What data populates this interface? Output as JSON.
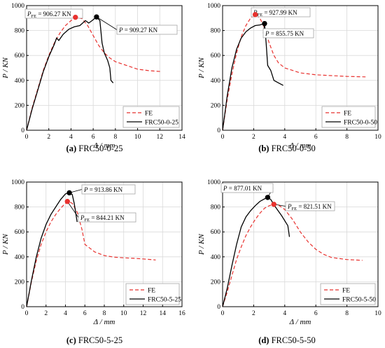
{
  "chart_data": [
    {
      "type": "line",
      "caption_label": "(a)",
      "caption_text": "FRC50-0-25",
      "xlabel": "Δ / mm",
      "ylabel": "P / KN",
      "xlim": [
        0,
        14
      ],
      "ylim": [
        0,
        1000
      ],
      "xticks": [
        0,
        2,
        4,
        6,
        8,
        10,
        12,
        14
      ],
      "yticks": [
        0,
        200,
        400,
        600,
        800,
        1000
      ],
      "grid": true,
      "legend_position": "bottom-right",
      "series": [
        {
          "name": "FE",
          "style": "dashed",
          "color": "#e8322f",
          "points": [
            [
              0,
              0
            ],
            [
              0.5,
              180
            ],
            [
              1,
              330
            ],
            [
              1.5,
              480
            ],
            [
              2,
              600
            ],
            [
              2.5,
              700
            ],
            [
              3,
              780
            ],
            [
              3.5,
              840
            ],
            [
              4,
              880
            ],
            [
              4.5,
              906
            ],
            [
              5,
              895
            ],
            [
              5.5,
              840
            ],
            [
              6,
              760
            ],
            [
              6.5,
              680
            ],
            [
              7,
              620
            ],
            [
              7.5,
              580
            ],
            [
              8,
              550
            ],
            [
              9,
              520
            ],
            [
              10,
              490
            ],
            [
              11,
              478
            ],
            [
              12.2,
              470
            ]
          ]
        },
        {
          "name": "FRC50-0-25",
          "style": "solid",
          "color": "#000000",
          "points": [
            [
              0,
              0
            ],
            [
              0.5,
              170
            ],
            [
              1,
              320
            ],
            [
              1.5,
              470
            ],
            [
              2,
              590
            ],
            [
              2.5,
              690
            ],
            [
              2.7,
              740
            ],
            [
              2.9,
              720
            ],
            [
              3.3,
              770
            ],
            [
              3.8,
              810
            ],
            [
              4.3,
              830
            ],
            [
              4.8,
              840
            ],
            [
              5.3,
              880
            ],
            [
              5.6,
              860
            ],
            [
              5.9,
              880
            ],
            [
              6.3,
              909
            ],
            [
              6.6,
              880
            ],
            [
              6.8,
              700
            ],
            [
              7.0,
              620
            ],
            [
              7.3,
              560
            ],
            [
              7.5,
              500
            ],
            [
              7.6,
              400
            ],
            [
              7.8,
              380
            ]
          ]
        }
      ],
      "markers": [
        {
          "x": 4.4,
          "y": 906.27,
          "color": "#e8322f",
          "label_main": "P",
          "label_sub": "FE",
          "label_rest": " = 906.27 KN"
        },
        {
          "x": 6.3,
          "y": 909.27,
          "color": "#000000",
          "label_main": "P",
          "label_sub": "",
          "label_rest": " = 909.27 KN"
        }
      ]
    },
    {
      "type": "line",
      "caption_label": "(b)",
      "caption_text": "FRC50-0-50",
      "xlabel": "Δ / mm",
      "ylabel": "P / KN",
      "xlim": [
        0,
        10
      ],
      "ylim": [
        0,
        1000
      ],
      "xticks": [
        0,
        2,
        4,
        6,
        8,
        10
      ],
      "yticks": [
        0,
        200,
        400,
        600,
        800,
        1000
      ],
      "grid": true,
      "legend_position": "bottom-right",
      "series": [
        {
          "name": "FE",
          "style": "dashed",
          "color": "#e8322f",
          "points": [
            [
              0,
              0
            ],
            [
              0.3,
              250
            ],
            [
              0.6,
              450
            ],
            [
              0.9,
              620
            ],
            [
              1.2,
              750
            ],
            [
              1.5,
              840
            ],
            [
              1.8,
              900
            ],
            [
              2.1,
              928
            ],
            [
              2.4,
              900
            ],
            [
              2.7,
              820
            ],
            [
              3.0,
              700
            ],
            [
              3.3,
              600
            ],
            [
              3.6,
              540
            ],
            [
              4,
              500
            ],
            [
              5,
              460
            ],
            [
              6,
              445
            ],
            [
              7,
              438
            ],
            [
              8,
              432
            ],
            [
              9.2,
              428
            ]
          ]
        },
        {
          "name": "FRC50-0-50",
          "style": "solid",
          "color": "#000000",
          "points": [
            [
              0,
              0
            ],
            [
              0.3,
              280
            ],
            [
              0.6,
              500
            ],
            [
              0.9,
              650
            ],
            [
              1.2,
              740
            ],
            [
              1.5,
              790
            ],
            [
              1.8,
              820
            ],
            [
              2.1,
              840
            ],
            [
              2.4,
              845
            ],
            [
              2.7,
              856
            ],
            [
              2.8,
              700
            ],
            [
              2.9,
              520
            ],
            [
              3.1,
              480
            ],
            [
              3.3,
              400
            ],
            [
              3.6,
              380
            ],
            [
              3.9,
              360
            ]
          ]
        }
      ],
      "markers": [
        {
          "x": 2.1,
          "y": 927.99,
          "color": "#e8322f",
          "label_main": "P",
          "label_sub": "FE",
          "label_rest": " = 927.99 KN"
        },
        {
          "x": 2.7,
          "y": 855.75,
          "color": "#000000",
          "label_main": "P",
          "label_sub": "",
          "label_rest": " = 855.75 KN"
        }
      ]
    },
    {
      "type": "line",
      "caption_label": "(c)",
      "caption_text": "FRC50-5-25",
      "xlabel": "Δ / mm",
      "ylabel": "P / KN",
      "xlim": [
        0,
        16
      ],
      "ylim": [
        0,
        1000
      ],
      "xticks": [
        0,
        2,
        4,
        6,
        8,
        10,
        12,
        14,
        16
      ],
      "yticks": [
        0,
        200,
        400,
        600,
        800,
        1000
      ],
      "grid": true,
      "legend_position": "bottom-right",
      "series": [
        {
          "name": "FE",
          "style": "dashed",
          "color": "#e8322f",
          "points": [
            [
              0,
              0
            ],
            [
              0.5,
              200
            ],
            [
              1,
              370
            ],
            [
              1.5,
              500
            ],
            [
              2,
              600
            ],
            [
              2.5,
              680
            ],
            [
              3,
              740
            ],
            [
              3.5,
              790
            ],
            [
              4,
              830
            ],
            [
              4.3,
              844
            ],
            [
              4.7,
              830
            ],
            [
              5.2,
              760
            ],
            [
              5.7,
              620
            ],
            [
              6,
              500
            ],
            [
              6.5,
              470
            ],
            [
              7,
              440
            ],
            [
              8,
              410
            ],
            [
              9,
              398
            ],
            [
              10,
              392
            ],
            [
              11,
              388
            ],
            [
              12,
              383
            ],
            [
              13.3,
              375
            ]
          ]
        },
        {
          "name": "FRC50-5-25",
          "style": "solid",
          "color": "#000000",
          "points": [
            [
              0,
              0
            ],
            [
              0.5,
              210
            ],
            [
              1,
              400
            ],
            [
              1.5,
              550
            ],
            [
              2,
              660
            ],
            [
              2.5,
              740
            ],
            [
              3,
              800
            ],
            [
              3.5,
              860
            ],
            [
              4,
              905
            ],
            [
              4.4,
              914
            ],
            [
              4.7,
              900
            ],
            [
              4.9,
              830
            ],
            [
              5.2,
              680
            ]
          ]
        }
      ],
      "markers": [
        {
          "x": 4.4,
          "y": 913.86,
          "color": "#000000",
          "label_main": "P",
          "label_sub": "",
          "label_rest": " = 913.86 KN"
        },
        {
          "x": 4.2,
          "y": 844.21,
          "color": "#e8322f",
          "label_main": "P",
          "label_sub": "FE",
          "label_rest": " = 844.21 KN"
        }
      ]
    },
    {
      "type": "line",
      "caption_label": "(d)",
      "caption_text": "FRC50-5-50",
      "xlabel": "Δ / mm",
      "ylabel": "P / KN",
      "xlim": [
        0,
        10
      ],
      "ylim": [
        0,
        1000
      ],
      "xticks": [
        0,
        2,
        4,
        6,
        8,
        10
      ],
      "yticks": [
        0,
        200,
        400,
        600,
        800,
        1000
      ],
      "grid": true,
      "legend_position": "bottom-right",
      "series": [
        {
          "name": "FE",
          "style": "dashed",
          "color": "#e8322f",
          "points": [
            [
              0,
              0
            ],
            [
              0.3,
              120
            ],
            [
              0.6,
              250
            ],
            [
              0.9,
              380
            ],
            [
              1.2,
              480
            ],
            [
              1.5,
              570
            ],
            [
              1.8,
              640
            ],
            [
              2.1,
              700
            ],
            [
              2.4,
              750
            ],
            [
              2.7,
              790
            ],
            [
              3.0,
              810
            ],
            [
              3.3,
              822
            ],
            [
              3.6,
              815
            ],
            [
              4,
              780
            ],
            [
              4.5,
              700
            ],
            [
              5,
              600
            ],
            [
              5.5,
              520
            ],
            [
              6,
              460
            ],
            [
              6.5,
              420
            ],
            [
              7,
              395
            ],
            [
              8,
              378
            ],
            [
              9,
              372
            ]
          ]
        },
        {
          "name": "FRC50-5-50",
          "style": "solid",
          "color": "#000000",
          "points": [
            [
              0,
              0
            ],
            [
              0.3,
              150
            ],
            [
              0.6,
              330
            ],
            [
              0.9,
              500
            ],
            [
              1.2,
              640
            ],
            [
              1.5,
              720
            ],
            [
              1.8,
              770
            ],
            [
              2.1,
              810
            ],
            [
              2.4,
              845
            ],
            [
              2.7,
              865
            ],
            [
              2.9,
              877
            ],
            [
              3.1,
              860
            ],
            [
              3.4,
              800
            ],
            [
              3.8,
              730
            ],
            [
              4.2,
              650
            ],
            [
              4.3,
              560
            ]
          ]
        }
      ],
      "markers": [
        {
          "x": 2.9,
          "y": 877.01,
          "color": "#000000",
          "label_main": "P",
          "label_sub": "",
          "label_rest": " = 877.01 KN"
        },
        {
          "x": 3.3,
          "y": 821.51,
          "color": "#e8322f",
          "label_main": "P",
          "label_sub": "FE",
          "label_rest": " = 821.51 KN"
        }
      ]
    }
  ]
}
